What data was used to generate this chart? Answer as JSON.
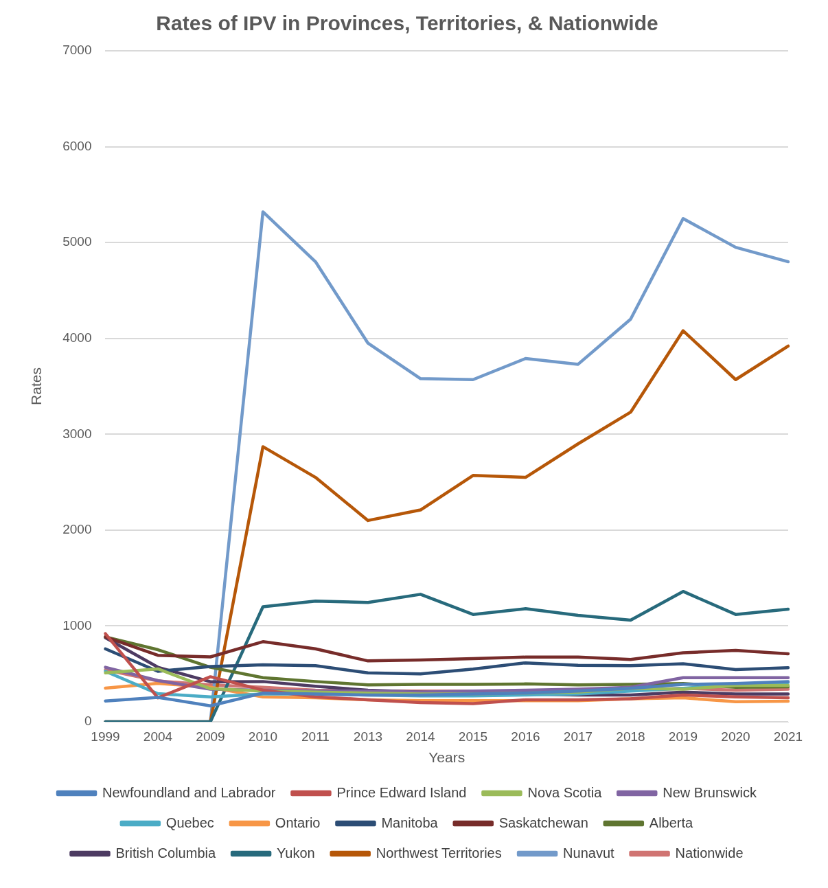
{
  "chart_data": {
    "type": "line",
    "title": "Rates of IPV in Provinces, Territories, & Nationwide",
    "xlabel": "Years",
    "ylabel": "Rates",
    "categories": [
      "1999",
      "2004",
      "2009",
      "2010",
      "2011",
      "2013",
      "2014",
      "2015",
      "2016",
      "2017",
      "2018",
      "2019",
      "2020",
      "2021"
    ],
    "ylim": [
      0,
      7000
    ],
    "yticks": [
      0,
      1000,
      2000,
      3000,
      4000,
      5000,
      6000,
      7000
    ],
    "grid": "y",
    "legend": "bottom",
    "marker": "none",
    "line_style": "solid",
    "series": [
      {
        "name": "Newfoundland and Labrador",
        "color": "#4f81bd",
        "values": [
          217,
          255,
          167,
          300,
          290,
          280,
          280,
          290,
          300,
          320,
          350,
          390,
          400,
          420
        ]
      },
      {
        "name": "Prince Edward Island",
        "color": "#c0504d",
        "values": [
          920,
          250,
          470,
          330,
          260,
          230,
          200,
          190,
          230,
          230,
          240,
          280,
          260,
          250
        ]
      },
      {
        "name": "Nova Scotia",
        "color": "#9bbb59",
        "values": [
          510,
          552,
          345,
          320,
          310,
          300,
          290,
          290,
          300,
          310,
          350,
          340,
          380,
          380
        ]
      },
      {
        "name": "New Brunswick",
        "color": "#8064a2",
        "values": [
          569,
          430,
          340,
          330,
          320,
          320,
          310,
          320,
          330,
          340,
          360,
          460,
          460,
          460
        ]
      },
      {
        "name": "Quebec",
        "color": "#4bacc6",
        "values": [
          527,
          293,
          260,
          290,
          290,
          280,
          270,
          270,
          280,
          290,
          320,
          350,
          390,
          410
        ]
      },
      {
        "name": "Ontario",
        "color": "#f79646",
        "values": [
          351,
          401,
          360,
          260,
          250,
          230,
          220,
          220,
          220,
          220,
          240,
          250,
          210,
          215
        ]
      },
      {
        "name": "Manitoba",
        "color": "#2c4d75",
        "values": [
          761,
          527,
          577,
          594,
          585,
          510,
          500,
          550,
          615,
          590,
          585,
          605,
          545,
          565
        ]
      },
      {
        "name": "Saskatchewan",
        "color": "#772c2a",
        "values": [
          886,
          694,
          677,
          836,
          761,
          635,
          645,
          660,
          675,
          675,
          650,
          720,
          745,
          710
        ]
      },
      {
        "name": "Alberta",
        "color": "#5f7530",
        "values": [
          886,
          752,
          569,
          460,
          420,
          385,
          390,
          390,
          395,
          385,
          390,
          400,
          360,
          365
        ]
      },
      {
        "name": "British Columbia",
        "color": "#4d3b62",
        "values": [
          878,
          569,
          418,
          420,
          370,
          330,
          310,
          300,
          290,
          280,
          280,
          310,
          290,
          290
        ]
      },
      {
        "name": "Yukon",
        "color": "#276a7c",
        "values": [
          0,
          0,
          0,
          1200,
          1260,
          1245,
          1330,
          1120,
          1180,
          1110,
          1060,
          1360,
          1120,
          1175
        ]
      },
      {
        "name": "Northwest Territories",
        "color": "#b65708",
        "values": [
          0,
          0,
          0,
          2870,
          2550,
          2100,
          2210,
          2570,
          2550,
          2900,
          3230,
          4080,
          3570,
          3920
        ]
      },
      {
        "name": "Nunavut",
        "color": "#729aca",
        "values": [
          0,
          0,
          0,
          5320,
          4800,
          3950,
          3580,
          3570,
          3790,
          3730,
          4200,
          5250,
          4950,
          4800
        ]
      },
      {
        "name": "Nationwide",
        "color": "#d07472",
        "values": [
          543,
          426,
          385,
          360,
          330,
          320,
          320,
          320,
          320,
          320,
          330,
          350,
          330,
          340
        ]
      }
    ]
  }
}
